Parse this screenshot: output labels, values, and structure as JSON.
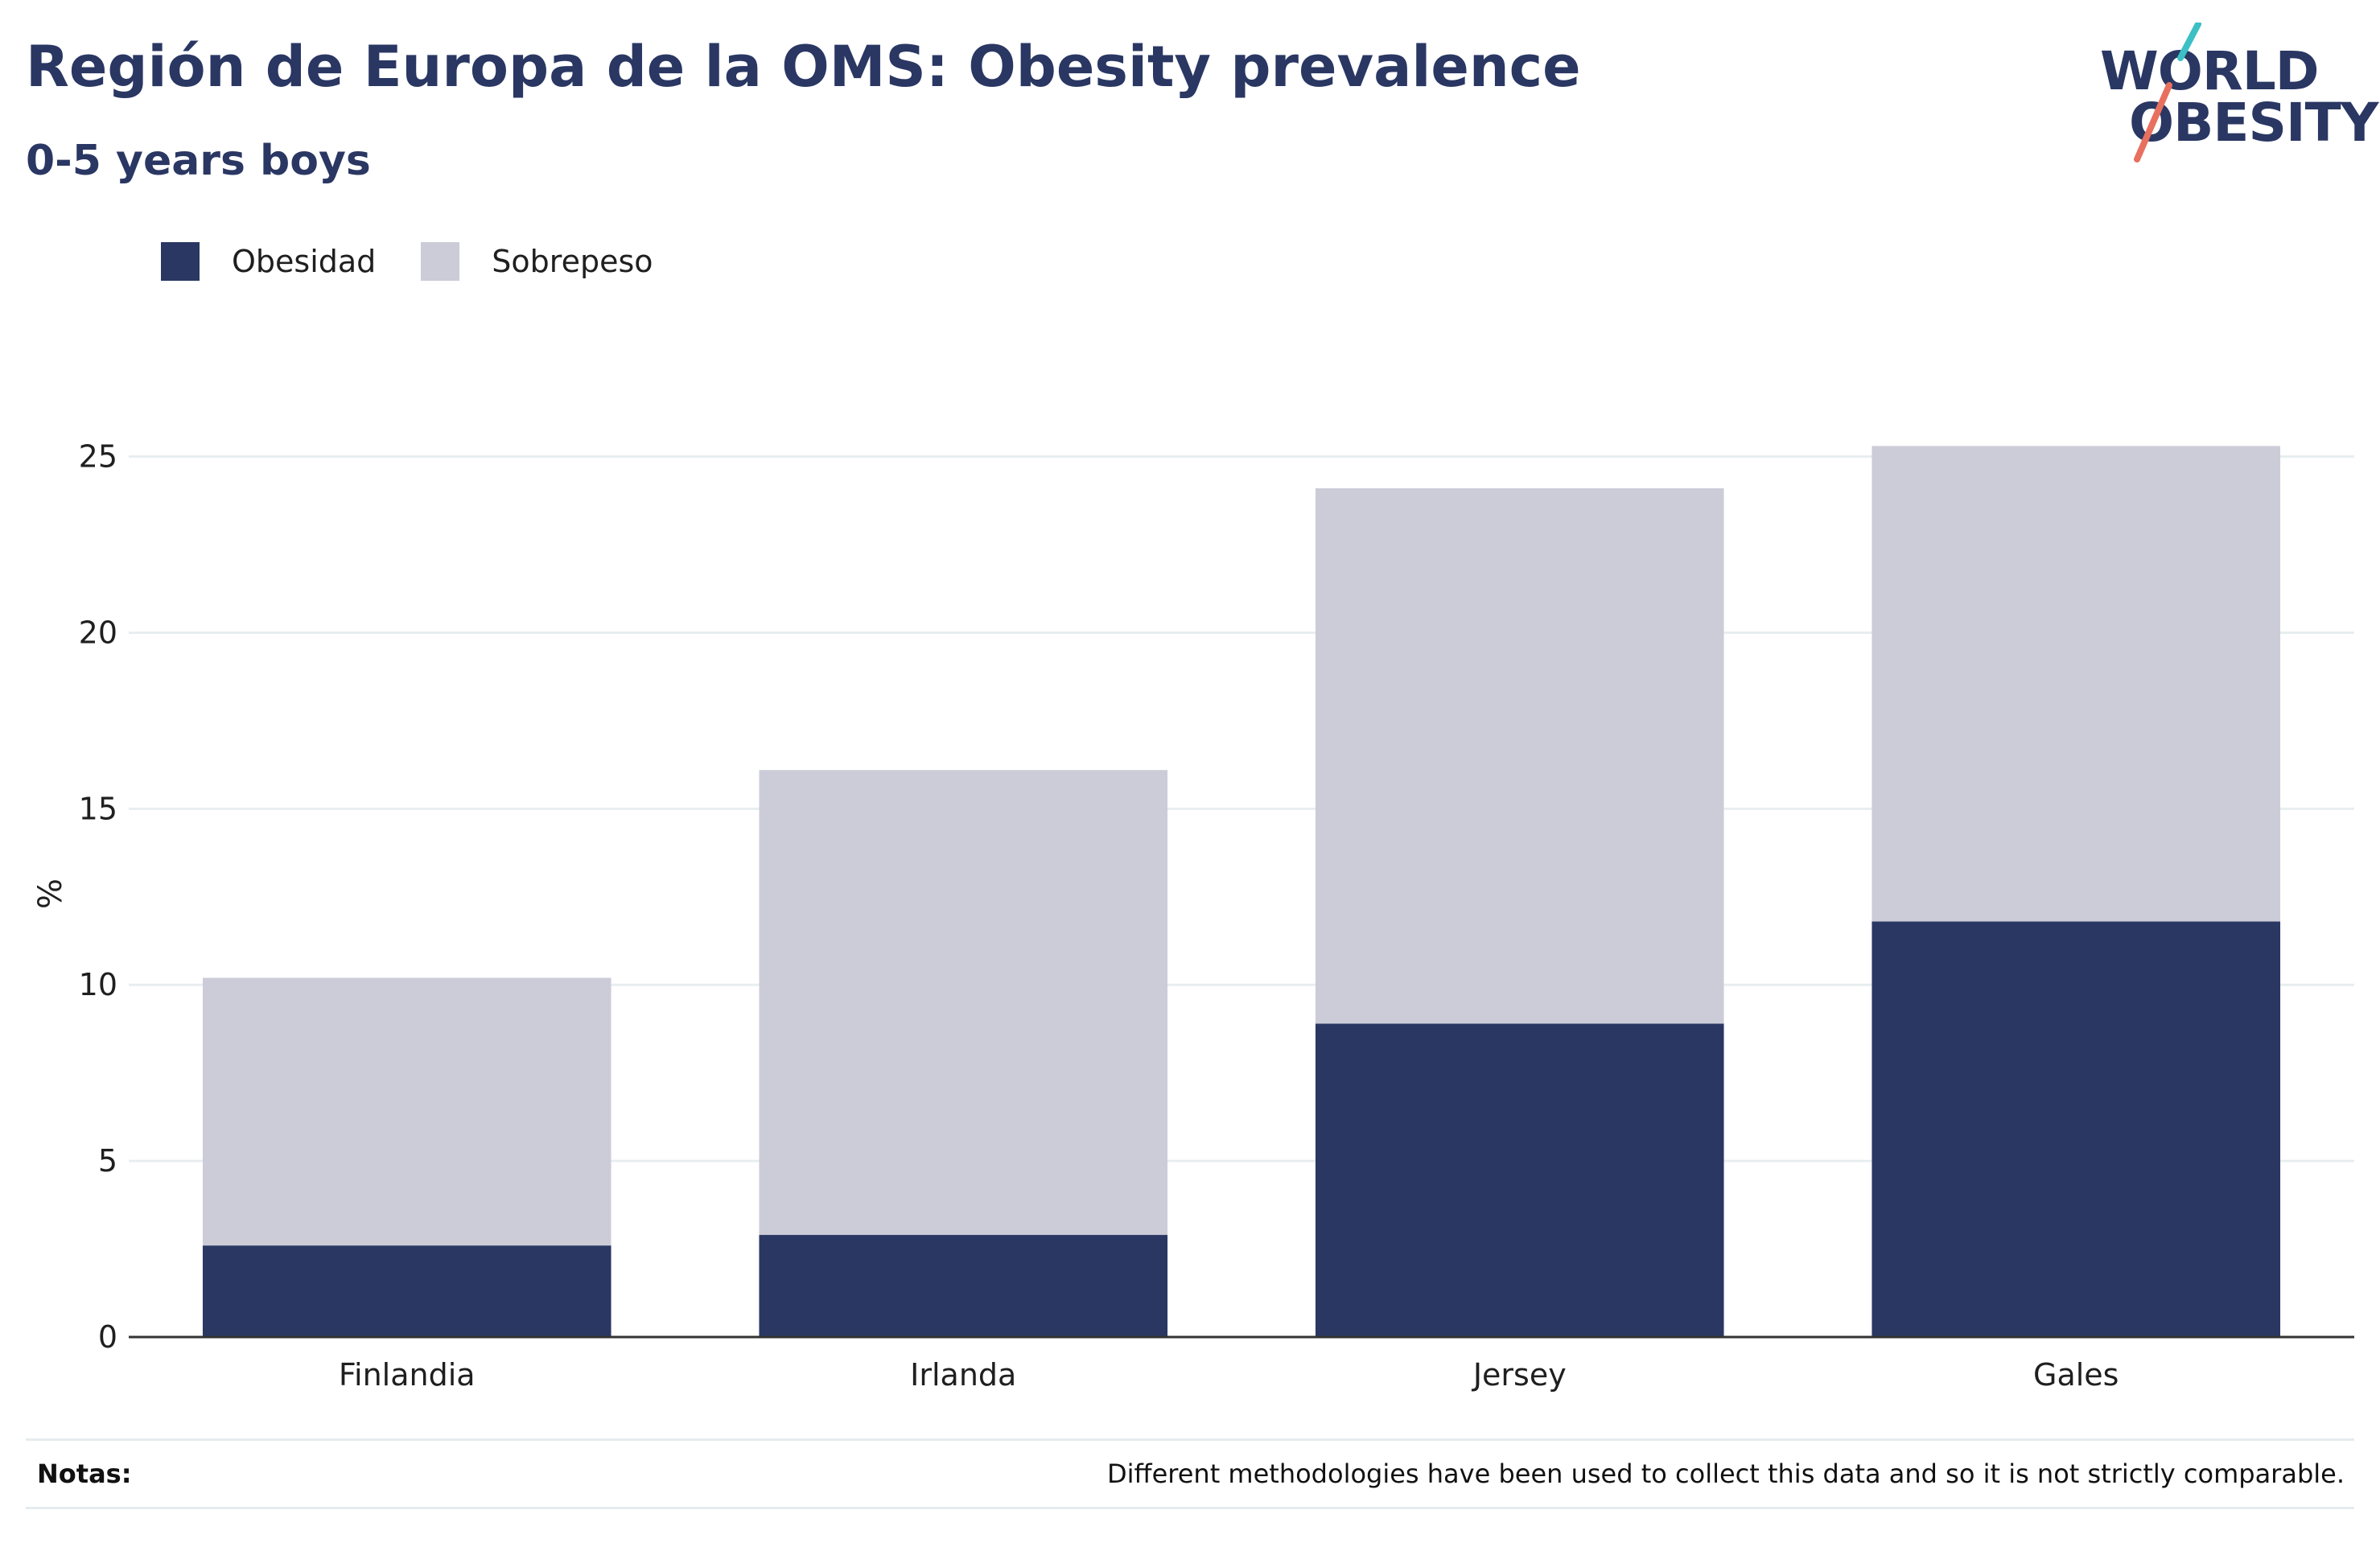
{
  "header": {
    "title": "Región de Europa de la OMS: Obesity prevalence",
    "subtitle": "0-5 years boys"
  },
  "logo": {
    "line1": "WORLD",
    "line2": "OBESITY",
    "icon": "slash-mark-icon",
    "colors": {
      "teal": "#3cc0c5",
      "coral": "#e8705f",
      "navy": "#2a3763"
    }
  },
  "colors": {
    "obesidad": "#2a3763",
    "sobrepeso": "#cbccd8",
    "grid": "#e8eef0",
    "axis": "#333333"
  },
  "chart_data": {
    "type": "bar",
    "stacked": true,
    "categories": [
      "Finlandia",
      "Irlanda",
      "Jersey",
      "Gales"
    ],
    "series": [
      {
        "name": "Obesidad",
        "values": [
          2.6,
          2.9,
          8.9,
          11.8
        ]
      },
      {
        "name": "Sobrepeso",
        "values": [
          7.6,
          13.2,
          15.2,
          13.5
        ]
      }
    ],
    "totals": [
      10.2,
      16.1,
      24.1,
      25.3
    ],
    "title": "Región de Europa de la OMS: Obesity prevalence",
    "subtitle": "0-5 years boys",
    "xlabel": "",
    "ylabel": "%",
    "ylim": [
      0,
      27
    ],
    "yticks": [
      0,
      5,
      10,
      15,
      20,
      25
    ],
    "grid": true,
    "legend_position": "top-left"
  },
  "notes": {
    "label": "Notas:",
    "text": "Different methodologies have been used to collect this data and so it is not strictly comparable."
  }
}
